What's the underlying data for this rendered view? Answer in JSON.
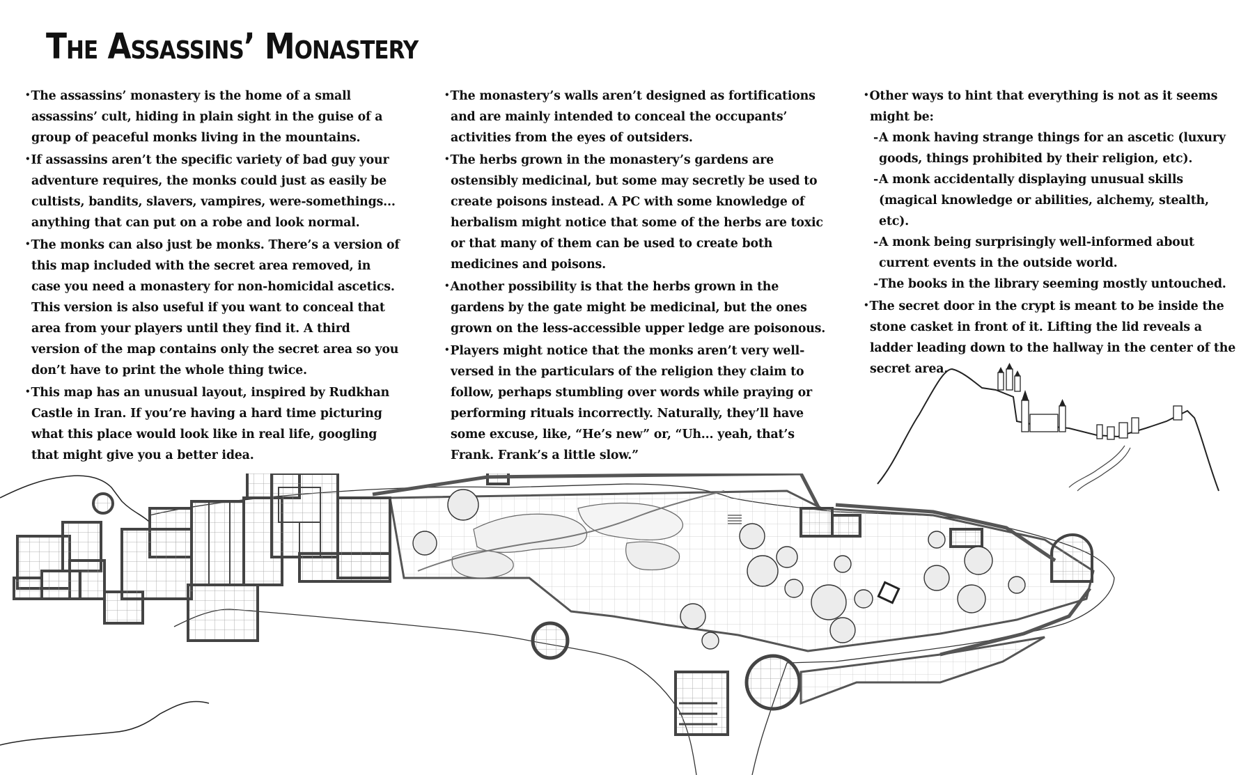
{
  "title": "The Assassins’ Monastery",
  "columns": [
    {
      "items": [
        {
          "type": "bullet",
          "text": "The assassins’ monastery is the home of a small assassins’ cult, hiding in plain sight in the guise of a group of peaceful monks living in the mountains."
        },
        {
          "type": "bullet",
          "text": "If assassins aren’t the specific variety of bad guy your adventure requires, the monks could just as easily be cultists, bandits, slavers, vampires, were-somethings... anything that can put on a robe and look normal."
        },
        {
          "type": "bullet",
          "text": "The monks can also just be monks. There’s a version of this map included with the secret area removed, in case you need a monastery for non-homicidal ascetics. This version is also useful if you want to conceal that area from your players until they find it. A third version of the map contains only the secret area so you don’t have to print the whole thing twice."
        },
        {
          "type": "bullet",
          "text": "This map has an unusual layout, inspired by Rudkhan Castle in Iran. If you’re having a hard time picturing what this place would look like in real life, googling that might give you a better idea."
        }
      ]
    },
    {
      "items": [
        {
          "type": "bullet",
          "text": "The monastery’s walls aren’t designed as fortifications and are mainly intended to conceal the occupants’ activities from the eyes of outsiders."
        },
        {
          "type": "bullet",
          "text": "The herbs grown in the monastery’s gardens are ostensibly medicinal, but some may secretly be used to create poisons instead. A PC with some knowledge of herbalism might notice that some of the herbs are toxic or that many of them can be used to create both medicines and poisons."
        },
        {
          "type": "bullet",
          "text": "Another possibility is that the herbs grown in the gardens by the gate might be medicinal, but the ones grown on the less-accessible upper ledge are poisonous."
        },
        {
          "type": "bullet",
          "text": "Players might notice that the monks aren’t very well-versed in the particulars of the religion they claim to follow, perhaps stumbling over words while praying or performing rituals incorrectly. Naturally, they’ll have some excuse, like, “He’s new” or, “Uh... yeah, that’s Frank. Frank’s a little slow.”"
        }
      ]
    },
    {
      "items": [
        {
          "type": "bullet",
          "text": "Other ways to hint that everything is not as it seems might be:"
        },
        {
          "type": "dash",
          "text": "A monk having strange things for an ascetic (luxury goods, things prohibited by their religion, etc)."
        },
        {
          "type": "dash",
          "text": "A monk accidentally displaying unusual skills (magical knowledge or abilities, alchemy, stealth, etc)."
        },
        {
          "type": "dash",
          "text": "A monk being surprisingly well-informed about current events in the outside world."
        },
        {
          "type": "dash",
          "text": "The books in the library seeming mostly untouched."
        },
        {
          "type": "bullet",
          "text": "The secret door in the crypt is meant to be inside the stone casket in front of it. Lifting the lid reveals a ladder leading down to the hallway in the center of the secret area."
        }
      ]
    }
  ],
  "map": {
    "ink_color": "#222222",
    "grid_color": "#bdbdbd",
    "wall_color": "#555555",
    "tree_fill": "#e9e9e9"
  }
}
